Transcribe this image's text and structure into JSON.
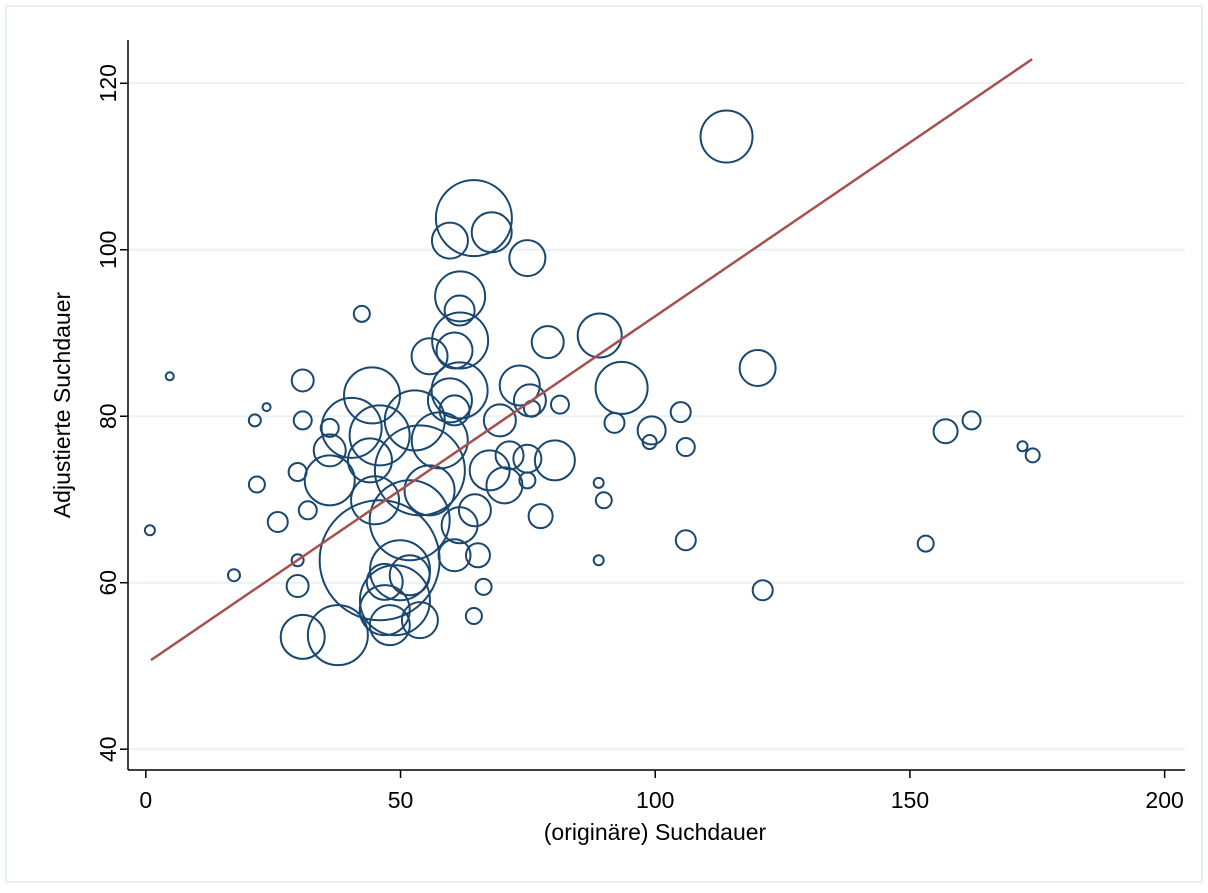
{
  "chart_data": {
    "type": "scatter",
    "x_label": "(originäre) Suchdauer",
    "y_label": "Adjustierte Suchdauer",
    "xlim": [
      -3.5,
      204
    ],
    "ylim": [
      37.5,
      125.2
    ],
    "xticks": [
      0,
      50,
      100,
      150,
      200
    ],
    "yticks": [
      40,
      60,
      80,
      100,
      120
    ],
    "grid": true,
    "points": {
      "color": "#1a476f",
      "x": [
        0.8,
        4.7,
        17.3,
        21.4,
        23.7,
        21.8,
        25.9,
        29.8,
        29.8,
        29.8,
        30.8,
        30.8,
        31.8,
        30.8,
        37.7,
        36.1,
        36.1,
        36.1,
        42.4,
        40.4,
        44.4,
        44,
        45.9,
        45,
        45.9,
        48.9,
        46.9,
        47.9,
        46.9,
        49.9,
        51.8,
        53.8,
        52.8,
        53.8,
        51.8,
        55.7,
        57.7,
        55.7,
        61.7,
        61.7,
        59.7,
        64.4,
        67.9,
        61.6,
        60.6,
        61.6,
        59.7,
        60.6,
        61.6,
        60.6,
        64.6,
        65.2,
        66.3,
        64.4,
        67.5,
        69.5,
        70.4,
        71.4,
        73.4,
        74.9,
        75.4,
        74.9,
        74.9,
        75.8,
        77.5,
        78.9,
        80.3,
        81.3,
        89.1,
        93.4,
        88.9,
        89.9,
        88.9,
        92,
        99.3,
        98.9,
        105,
        106,
        106,
        114,
        120.1,
        121.1,
        153.1,
        157,
        162.1,
        172.1,
        174.1
      ],
      "y": [
        66.3,
        84.8,
        60.9,
        79.5,
        81.1,
        71.8,
        67.3,
        62.7,
        59.6,
        73.3,
        84.3,
        79.5,
        68.7,
        53.5,
        53.7,
        78.6,
        75.9,
        72.3,
        92.3,
        78.6,
        82.5,
        74.7,
        77.7,
        69.9,
        62.7,
        57.9,
        56.7,
        54.9,
        60.1,
        61.5,
        67.5,
        73.5,
        79.5,
        55.5,
        60.9,
        71.1,
        77.1,
        87.2,
        89.1,
        94.4,
        101.1,
        103.8,
        102.1,
        92.7,
        87.9,
        83.1,
        81.9,
        80.7,
        66.9,
        63.3,
        68.7,
        63.3,
        59.5,
        56,
        73.5,
        79.5,
        71.7,
        75.3,
        83.7,
        99,
        81.9,
        74.9,
        72.3,
        80.9,
        68,
        88.9,
        74.7,
        81.4,
        89.7,
        83.4,
        72,
        69.9,
        62.7,
        79.2,
        78.3,
        76.9,
        80.5,
        76.3,
        65.1,
        113.6,
        85.8,
        59.1,
        64.7,
        78.2,
        79.5,
        76.4,
        75.3
      ],
      "sizes": [
        5,
        4,
        6,
        6,
        4,
        8,
        10,
        6,
        11,
        9,
        11,
        9,
        9,
        22,
        30,
        9,
        16,
        25,
        8,
        30,
        28,
        22,
        30,
        24,
        60,
        35,
        25,
        20,
        18,
        30,
        40,
        45,
        30,
        18,
        20,
        25,
        28,
        18,
        28,
        25,
        18,
        38,
        20,
        15,
        18,
        28,
        22,
        15,
        18,
        16,
        16,
        12,
        8,
        8,
        20,
        16,
        18,
        14,
        20,
        18,
        16,
        14,
        8,
        8,
        12,
        16,
        20,
        9,
        22,
        26,
        5,
        8,
        5,
        10,
        14,
        7,
        10,
        9,
        10,
        26,
        18,
        10,
        8,
        12,
        9,
        5,
        7
      ]
    },
    "fit_line": {
      "color": "#a5514f",
      "x": [
        1,
        174
      ],
      "y": [
        50.7,
        122.9
      ]
    }
  }
}
